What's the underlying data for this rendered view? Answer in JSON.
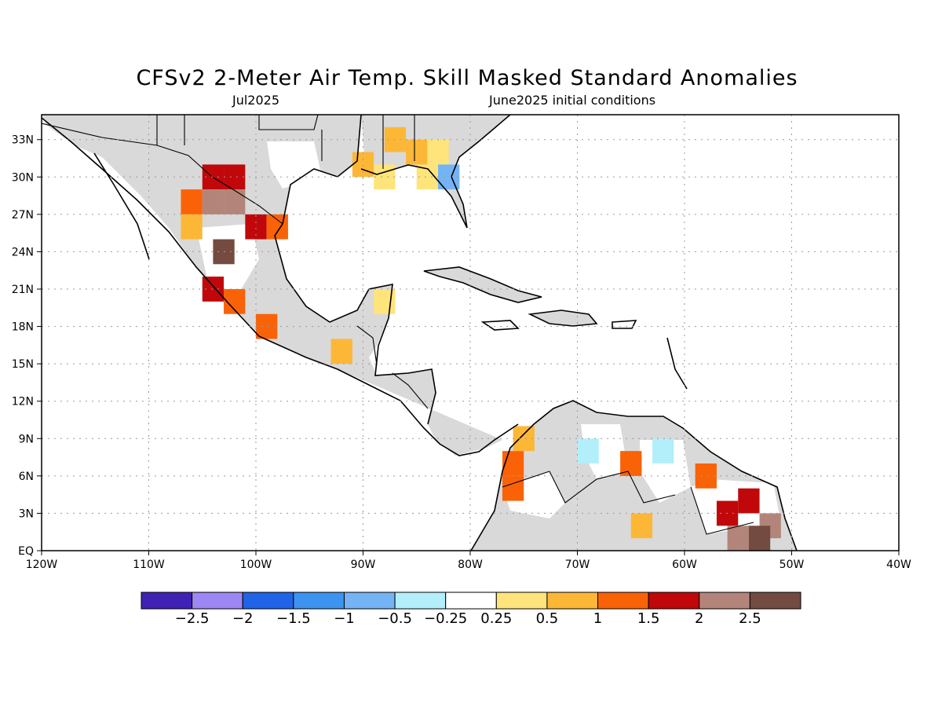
{
  "title": "CFSv2 2-Meter Air Temp. Skill Masked Standard Anomalies",
  "subtitle_left": "Jul2025",
  "subtitle_right": "June2025 initial conditions",
  "map": {
    "lon_range": [
      -120,
      -40
    ],
    "lat_range": [
      0,
      35
    ],
    "lon_labels": [
      {
        "lon": -120,
        "label": "120W"
      },
      {
        "lon": -110,
        "label": "110W"
      },
      {
        "lon": -100,
        "label": "100W"
      },
      {
        "lon": -90,
        "label": "90W"
      },
      {
        "lon": -80,
        "label": "80W"
      },
      {
        "lon": -70,
        "label": "70W"
      },
      {
        "lon": -60,
        "label": "60W"
      },
      {
        "lon": -50,
        "label": "50W"
      },
      {
        "lon": -40,
        "label": "40W"
      }
    ],
    "lat_labels": [
      {
        "lat": 0,
        "label": "EQ"
      },
      {
        "lat": 3,
        "label": "3N"
      },
      {
        "lat": 6,
        "label": "6N"
      },
      {
        "lat": 9,
        "label": "9N"
      },
      {
        "lat": 12,
        "label": "12N"
      },
      {
        "lat": 15,
        "label": "15N"
      },
      {
        "lat": 18,
        "label": "18N"
      },
      {
        "lat": 21,
        "label": "21N"
      },
      {
        "lat": 24,
        "label": "24N"
      },
      {
        "lat": 27,
        "label": "27N"
      },
      {
        "lat": 30,
        "label": "30N"
      },
      {
        "lat": 33,
        "label": "33N"
      }
    ],
    "grid": true,
    "skill_mask_color": "#d9d9d9",
    "anomaly_cells": [
      {
        "lon": -104,
        "lat": 30,
        "bin": 10
      },
      {
        "lon": -102,
        "lat": 30,
        "bin": 10
      },
      {
        "lon": -104,
        "lat": 28,
        "bin": 11
      },
      {
        "lon": -102,
        "lat": 28,
        "bin": 11
      },
      {
        "lon": -106,
        "lat": 28,
        "bin": 9
      },
      {
        "lon": -106,
        "lat": 26,
        "bin": 8
      },
      {
        "lon": -100,
        "lat": 26,
        "bin": 10
      },
      {
        "lon": -98,
        "lat": 26,
        "bin": 9
      },
      {
        "lon": -103,
        "lat": 24,
        "bin": 12
      },
      {
        "lon": -104,
        "lat": 21,
        "bin": 10
      },
      {
        "lon": -102,
        "lat": 20,
        "bin": 9
      },
      {
        "lon": -99,
        "lat": 18,
        "bin": 9
      },
      {
        "lon": -85,
        "lat": 32,
        "bin": 8
      },
      {
        "lon": -83,
        "lat": 32,
        "bin": 7
      },
      {
        "lon": -87,
        "lat": 33,
        "bin": 8
      },
      {
        "lon": -84,
        "lat": 30,
        "bin": 7
      },
      {
        "lon": -88,
        "lat": 30,
        "bin": 7
      },
      {
        "lon": -90,
        "lat": 31,
        "bin": 8
      },
      {
        "lon": -92,
        "lat": 16,
        "bin": 8
      },
      {
        "lon": -88,
        "lat": 20,
        "bin": 7
      },
      {
        "lon": -76,
        "lat": 7,
        "bin": 9
      },
      {
        "lon": -76,
        "lat": 5,
        "bin": 9
      },
      {
        "lon": -75,
        "lat": 9,
        "bin": 8
      },
      {
        "lon": -64,
        "lat": 2,
        "bin": 8
      },
      {
        "lon": -65,
        "lat": 7,
        "bin": 9
      },
      {
        "lon": -69,
        "lat": 8,
        "bin": 5
      },
      {
        "lon": -62,
        "lat": 8,
        "bin": 5
      },
      {
        "lon": -58,
        "lat": 6,
        "bin": 9
      },
      {
        "lon": -54,
        "lat": 4,
        "bin": 10
      },
      {
        "lon": -56,
        "lat": 3,
        "bin": 10
      },
      {
        "lon": -52,
        "lat": 2,
        "bin": 11
      },
      {
        "lon": -55,
        "lat": 1,
        "bin": 11
      },
      {
        "lon": -53,
        "lat": 1,
        "bin": 12
      },
      {
        "lon": -82,
        "lat": 30,
        "bin": 4
      }
    ]
  },
  "colorbar": {
    "colors": [
      "#3f22b5",
      "#9c87f5",
      "#2063e6",
      "#3d93f0",
      "#74b4f4",
      "#b3eefb",
      "#ffffff",
      "#fee47b",
      "#fdb737",
      "#fa6207",
      "#c0080a",
      "#b3857a",
      "#744b40"
    ],
    "labels": [
      "-2.5",
      "-2",
      "-1.5",
      "-1",
      "-0.5",
      "-0.25",
      "0.25",
      "0.5",
      "1",
      "1.5",
      "2",
      "2.5"
    ]
  }
}
